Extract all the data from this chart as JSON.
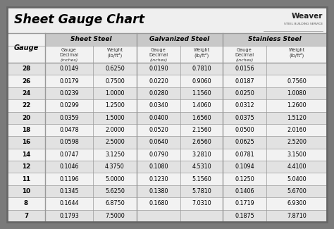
{
  "title": "Sheet Gauge Chart",
  "bg_outer": "#7a7a7a",
  "bg_inner": "#f2f2f2",
  "bg_title": "#efefef",
  "bg_section_hdr": "#c8c8c8",
  "bg_row_even": "#e2e2e2",
  "bg_row_odd": "#f2f2f2",
  "gauges": [
    28,
    26,
    24,
    22,
    20,
    18,
    16,
    14,
    12,
    11,
    10,
    8,
    7
  ],
  "sheet_steel_decimal": [
    "0.0149",
    "0.0179",
    "0.0239",
    "0.0299",
    "0.0359",
    "0.0478",
    "0.0598",
    "0.0747",
    "0.1046",
    "0.1196",
    "0.1345",
    "0.1644",
    "0.1793"
  ],
  "sheet_steel_weight": [
    "0.6250",
    "0.7500",
    "1.0000",
    "1.2500",
    "1.5000",
    "2.0000",
    "2.5000",
    "3.1250",
    "4.3750",
    "5.0000",
    "5.6250",
    "6.8750",
    "7.5000"
  ],
  "galv_decimal": [
    "0.0190",
    "0.0220",
    "0.0280",
    "0.0340",
    "0.0400",
    "0.0520",
    "0.0640",
    "0.0790",
    "0.1080",
    "0.1230",
    "0.1380",
    "0.1680",
    ""
  ],
  "galv_weight": [
    "0.7810",
    "0.9060",
    "1.1560",
    "1.4060",
    "1.6560",
    "2.1560",
    "2.6560",
    "3.2810",
    "4.5310",
    "5.1560",
    "5.7810",
    "7.0310",
    ""
  ],
  "ss_decimal": [
    "0.0156",
    "0.0187",
    "0.0250",
    "0.0312",
    "0.0375",
    "0.0500",
    "0.0625",
    "0.0781",
    "0.1094",
    "0.1250",
    "0.1406",
    "0.1719",
    "0.1875"
  ],
  "ss_weight": [
    "",
    "0.7560",
    "1.0080",
    "1.2600",
    "1.5120",
    "2.0160",
    "2.5200",
    "3.1500",
    "4.4100",
    "5.0400",
    "5.6700",
    "6.9300",
    "7.8710"
  ]
}
